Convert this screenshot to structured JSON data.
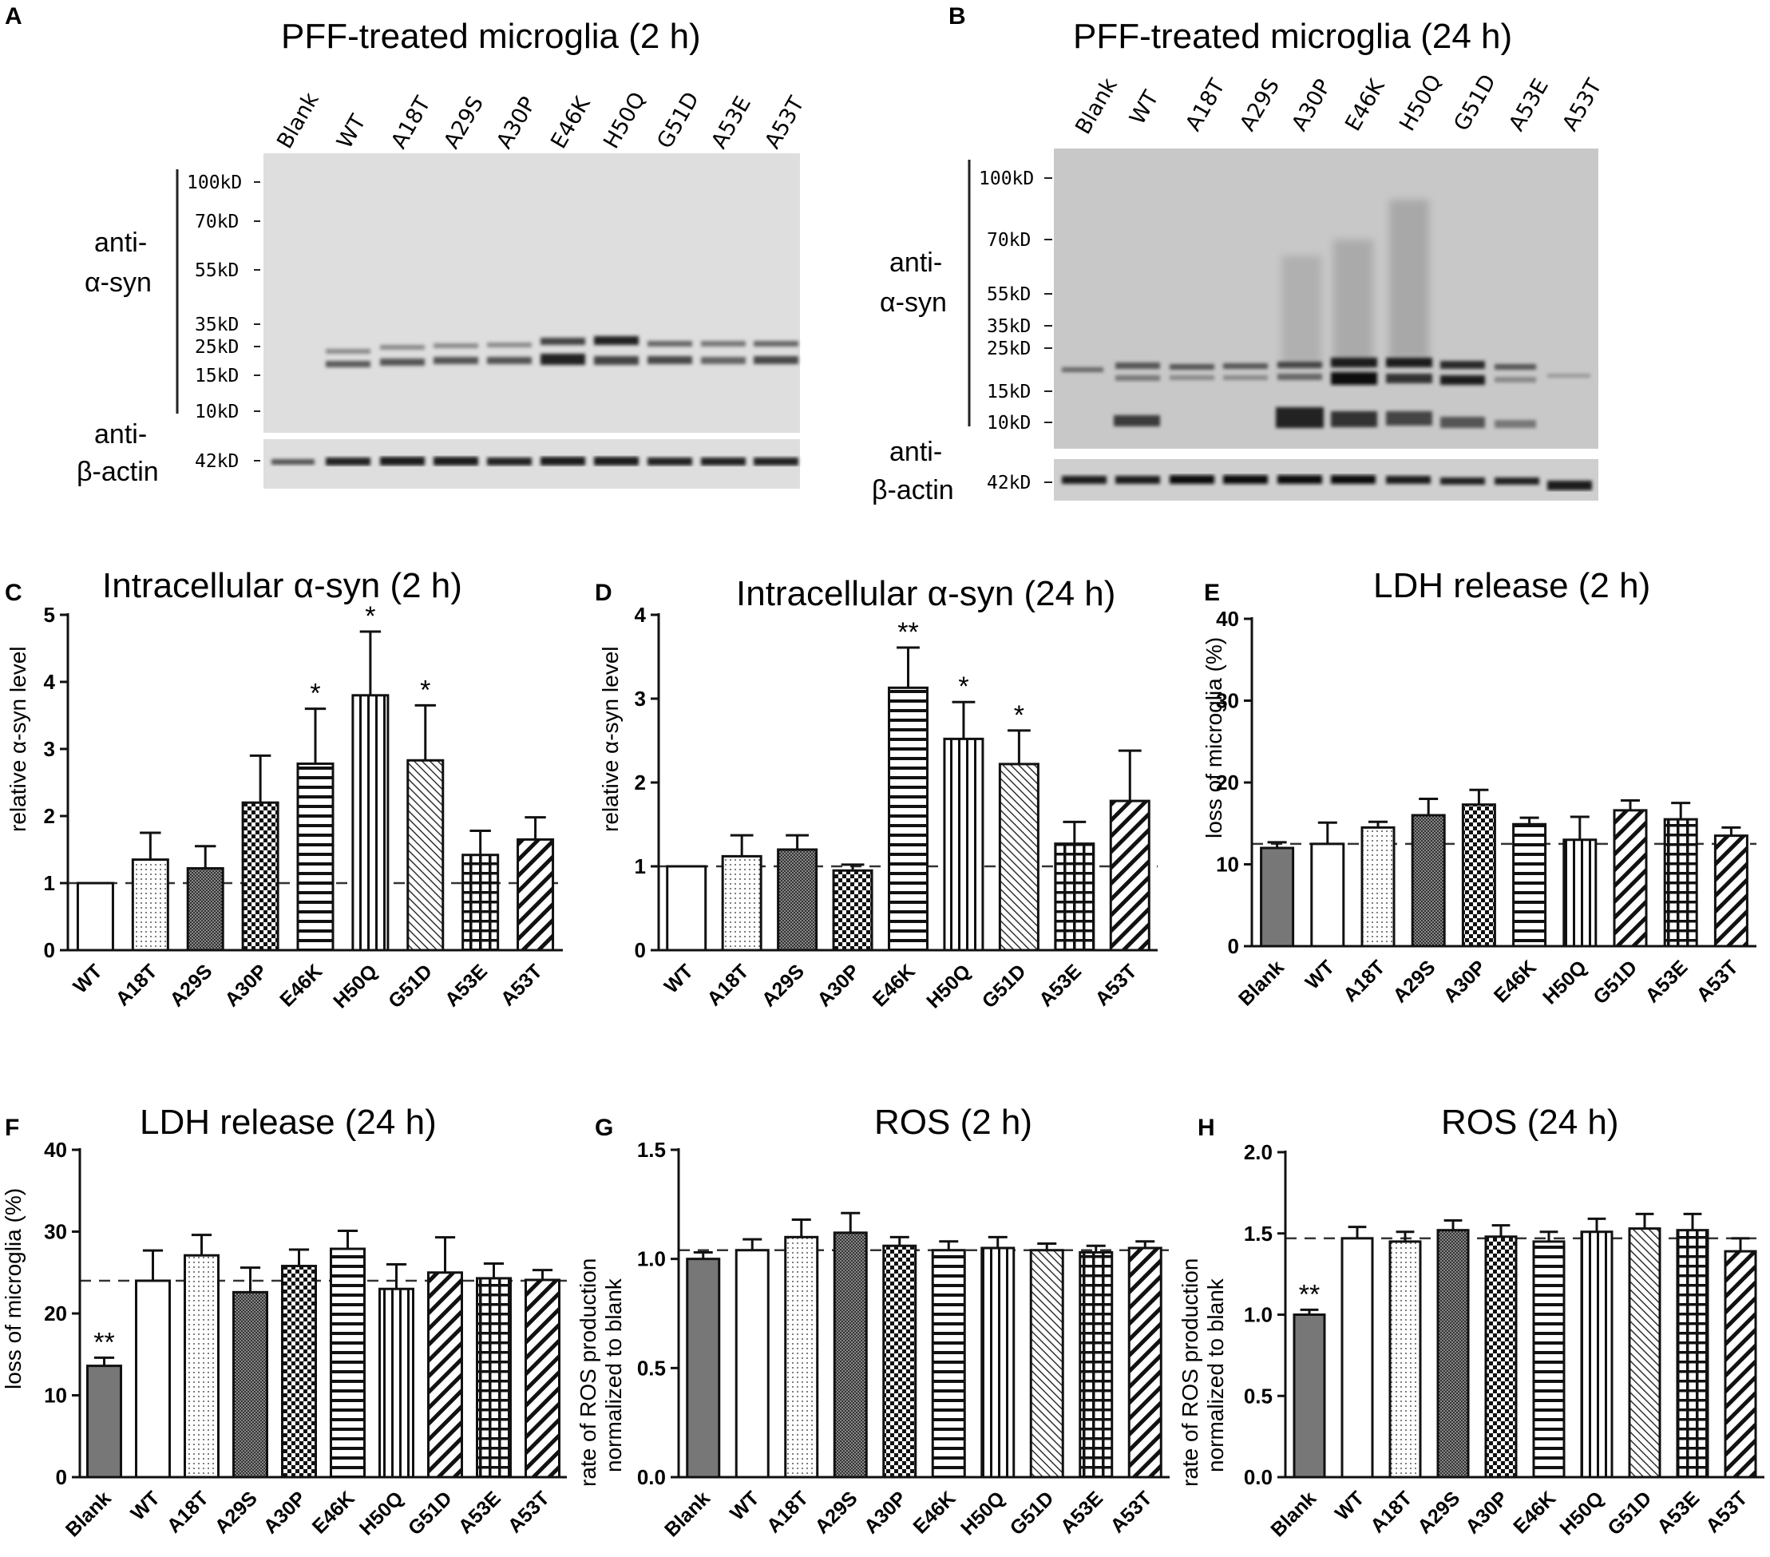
{
  "colors": {
    "ink": "#1a1a1a",
    "gray_fill": "#777777",
    "blot_bg": "#dcdcdc",
    "blot_bg_dark": "#c6c6c6"
  },
  "blots": [
    {
      "panel": "A",
      "title": "PFF-treated microglia (2 h)",
      "lanes": [
        "Blank",
        "WT",
        "A18T",
        "A29S",
        "A30P",
        "E46K",
        "H50Q",
        "G51D",
        "A53E",
        "A53T"
      ],
      "markers": [
        "100kD",
        "70kD",
        "55kD",
        "35kD",
        "25kD",
        "15kD",
        "10kD"
      ],
      "actin_marker": "42kD",
      "label_syn_1": "anti-",
      "label_syn_2": "α-syn",
      "label_actin_1": "anti-",
      "label_actin_2": "β-actin"
    },
    {
      "panel": "B",
      "title": "PFF-treated microglia (24 h)",
      "lanes": [
        "Blank",
        "WT",
        "A18T",
        "A29S",
        "A30P",
        "E46K",
        "H50Q",
        "G51D",
        "A53E",
        "A53T"
      ],
      "markers": [
        "100kD",
        "70kD",
        "55kD",
        "35kD",
        "25kD",
        "15kD",
        "10kD"
      ],
      "actin_marker": "42kD",
      "label_syn_1": "anti-",
      "label_syn_2": "α-syn",
      "label_actin_1": "anti-",
      "label_actin_2": "β-actin"
    }
  ],
  "chart_data": [
    {
      "panel": "C",
      "type": "bar",
      "title": "Intracellular α-syn (2 h)",
      "ylabel": "relative α-syn  level",
      "ylim": [
        0,
        5
      ],
      "yticks": [
        "0",
        "1",
        "2",
        "3",
        "4",
        "5"
      ],
      "categories": [
        "WT",
        "A18T",
        "A29S",
        "A30P",
        "E46K",
        "H50Q",
        "G51D",
        "A53E",
        "A53T"
      ],
      "values": [
        1.0,
        1.35,
        1.22,
        2.2,
        2.78,
        3.8,
        2.83,
        1.42,
        1.65
      ],
      "errors": [
        0,
        0.4,
        0.33,
        0.7,
        0.82,
        0.95,
        0.82,
        0.36,
        0.33
      ],
      "patterns": [
        "white",
        "dots",
        "fine",
        "check",
        "hstripe",
        "vstripe",
        "diagthin",
        "grid",
        "diag"
      ],
      "significance": [
        "",
        "",
        "",
        "",
        "*",
        "*",
        "*",
        "",
        ""
      ],
      "reference_line": 1.0
    },
    {
      "panel": "D",
      "type": "bar",
      "title": "Intracellular α-syn (24 h)",
      "ylabel": "relative α-syn  level",
      "ylim": [
        0,
        4
      ],
      "yticks": [
        "0",
        "1",
        "2",
        "3",
        "4"
      ],
      "categories": [
        "WT",
        "A18T",
        "A29S",
        "A30P",
        "E46K",
        "H50Q",
        "G51D",
        "A53E",
        "A53T"
      ],
      "values": [
        1.0,
        1.12,
        1.2,
        0.95,
        3.13,
        2.52,
        2.22,
        1.27,
        1.78
      ],
      "errors": [
        0,
        0.25,
        0.17,
        0.07,
        0.48,
        0.44,
        0.4,
        0.26,
        0.6
      ],
      "patterns": [
        "white",
        "dots",
        "fine",
        "check",
        "hstripe",
        "vstripe",
        "diagthin",
        "grid",
        "diag"
      ],
      "significance": [
        "",
        "",
        "",
        "",
        "**",
        "*",
        "*",
        "",
        ""
      ],
      "reference_line": 1.0
    },
    {
      "panel": "E",
      "type": "bar",
      "title": "LDH release (2 h)",
      "ylabel": "loss of microglia (%)",
      "ylim": [
        0,
        40
      ],
      "yticks": [
        "0",
        "10",
        "20",
        "30",
        "40"
      ],
      "categories": [
        "Blank",
        "WT",
        "A18T",
        "A29S",
        "A30P",
        "E46K",
        "H50Q",
        "G51D",
        "A53E",
        "A53T"
      ],
      "values": [
        12.0,
        12.5,
        14.5,
        16.0,
        17.3,
        14.9,
        13.0,
        16.6,
        15.5,
        13.5
      ],
      "errors": [
        0.7,
        2.6,
        0.7,
        2.0,
        1.8,
        0.8,
        2.8,
        1.2,
        2.0,
        1.0
      ],
      "patterns": [
        "gray",
        "white",
        "dots",
        "fine",
        "check",
        "hstripe",
        "vstripe",
        "diag",
        "grid",
        "diag"
      ],
      "significance": [
        "",
        "",
        "",
        "",
        "",
        "",
        "",
        "",
        "",
        ""
      ],
      "reference_line": 12.5
    },
    {
      "panel": "F",
      "type": "bar",
      "title": "LDH release (24 h)",
      "ylabel": "loss of microglia (%)",
      "ylim": [
        0,
        40
      ],
      "yticks": [
        "0",
        "10",
        "20",
        "30",
        "40"
      ],
      "categories": [
        "Blank",
        "WT",
        "A18T",
        "A29S",
        "A30P",
        "E46K",
        "H50Q",
        "G51D",
        "A53E",
        "A53T"
      ],
      "values": [
        13.6,
        24.0,
        27.1,
        22.6,
        25.8,
        27.9,
        23.0,
        25.0,
        24.3,
        24.1
      ],
      "errors": [
        1.0,
        3.7,
        2.5,
        3.0,
        2.0,
        2.2,
        3.0,
        4.3,
        1.8,
        1.2
      ],
      "patterns": [
        "gray",
        "white",
        "dots",
        "fine",
        "check",
        "hstripe",
        "vstripe",
        "diag",
        "grid",
        "diag"
      ],
      "significance": [
        "**",
        "",
        "",
        "",
        "",
        "",
        "",
        "",
        "",
        ""
      ],
      "reference_line": 24.0
    },
    {
      "panel": "G",
      "type": "bar",
      "title": "ROS  (2 h)",
      "ylabel": "rate of ROS production normalized to blank",
      "ylim": [
        0,
        1.5
      ],
      "yticks": [
        "0.0",
        "0.5",
        "1.0",
        "1.5"
      ],
      "categories": [
        "Blank",
        "WT",
        "A18T",
        "A29S",
        "A30P",
        "E46K",
        "H50Q",
        "G51D",
        "A53E",
        "A53T"
      ],
      "values": [
        1.0,
        1.04,
        1.1,
        1.12,
        1.06,
        1.04,
        1.05,
        1.04,
        1.03,
        1.05
      ],
      "errors": [
        0.03,
        0.05,
        0.08,
        0.09,
        0.04,
        0.04,
        0.05,
        0.03,
        0.03,
        0.03
      ],
      "patterns": [
        "gray",
        "white",
        "dots",
        "fine",
        "check",
        "hstripe",
        "vstripe",
        "diagthin",
        "grid",
        "diag"
      ],
      "significance": [
        "",
        "",
        "",
        "",
        "",
        "",
        "",
        "",
        "",
        ""
      ],
      "reference_line": 1.04
    },
    {
      "panel": "H",
      "type": "bar",
      "title": "ROS  (24 h)",
      "ylabel": "rate of ROS production normalized to blank",
      "ylim": [
        0,
        2.0
      ],
      "yticks": [
        "0.0",
        "0.5",
        "1.0",
        "1.5",
        "2.0"
      ],
      "categories": [
        "Blank",
        "WT",
        "A18T",
        "A29S",
        "A30P",
        "E46K",
        "H50Q",
        "G51D",
        "A53E",
        "A53T"
      ],
      "values": [
        1.0,
        1.47,
        1.45,
        1.52,
        1.48,
        1.45,
        1.51,
        1.53,
        1.52,
        1.39
      ],
      "errors": [
        0.03,
        0.07,
        0.06,
        0.06,
        0.07,
        0.06,
        0.08,
        0.09,
        0.1,
        0.08
      ],
      "patterns": [
        "gray",
        "white",
        "dots",
        "fine",
        "check",
        "hstripe",
        "vstripe",
        "diagthin",
        "grid",
        "diag"
      ],
      "significance": [
        "**",
        "",
        "",
        "",
        "",
        "",
        "",
        "",
        "",
        ""
      ],
      "reference_line": 1.47
    }
  ]
}
